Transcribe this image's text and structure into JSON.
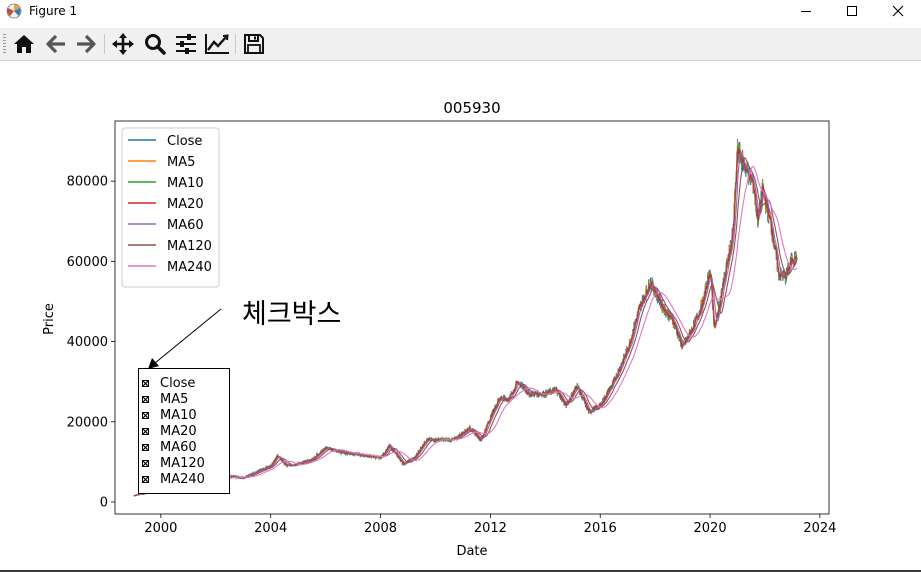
{
  "window": {
    "title": "Figure 1",
    "icon": "matplotlib-logo-icon",
    "controls": [
      "minimize-icon",
      "maximize-icon",
      "close-icon"
    ]
  },
  "toolbar": {
    "buttons": [
      {
        "name": "home-button",
        "icon": "home-icon"
      },
      {
        "name": "back-button",
        "icon": "arrow-left-icon"
      },
      {
        "name": "forward-button",
        "icon": "arrow-right-icon"
      },
      {
        "name": "pan-button",
        "icon": "move-icon"
      },
      {
        "name": "zoom-button",
        "icon": "magnifier-icon"
      },
      {
        "name": "configure-subplots-button",
        "icon": "sliders-icon"
      },
      {
        "name": "edit-axis-button",
        "icon": "line-chart-icon"
      },
      {
        "name": "save-button",
        "icon": "floppy-disk-icon"
      }
    ]
  },
  "annotation": {
    "text": "체크박스"
  },
  "checkboxes": [
    {
      "label": "Close",
      "checked": true
    },
    {
      "label": "MA5",
      "checked": true
    },
    {
      "label": "MA10",
      "checked": true
    },
    {
      "label": "MA20",
      "checked": true
    },
    {
      "label": "MA60",
      "checked": true
    },
    {
      "label": "MA120",
      "checked": true
    },
    {
      "label": "MA240",
      "checked": true
    }
  ],
  "chart_data": {
    "type": "line",
    "title": "005930",
    "xlabel": "Date",
    "ylabel": "Price",
    "xlim": [
      "1998-05-01",
      "2024-05-01"
    ],
    "ylim": [
      -3000,
      95000
    ],
    "xticks": [
      "2000",
      "2004",
      "2008",
      "2012",
      "2016",
      "2020",
      "2024"
    ],
    "yticks": [
      "0",
      "20000",
      "40000",
      "60000",
      "80000"
    ],
    "legend_position": "upper-left",
    "grid": false,
    "series": [
      {
        "name": "Close",
        "color": "#1f77b4"
      },
      {
        "name": "MA5",
        "color": "#ff7f0e"
      },
      {
        "name": "MA10",
        "color": "#2ca02c"
      },
      {
        "name": "MA20",
        "color": "#d62728"
      },
      {
        "name": "MA60",
        "color": "#9467bd"
      },
      {
        "name": "MA120",
        "color": "#8c564b"
      },
      {
        "name": "MA240",
        "color": "#e377c2"
      }
    ],
    "approx_close_points": [
      [
        "1999-01-01",
        1500
      ],
      [
        "1999-07-01",
        2500
      ],
      [
        "2000-01-01",
        3200
      ],
      [
        "2000-07-01",
        3000
      ],
      [
        "2001-01-01",
        3200
      ],
      [
        "2001-07-01",
        4000
      ],
      [
        "2002-01-01",
        5500
      ],
      [
        "2002-07-01",
        6500
      ],
      [
        "2003-01-01",
        6000
      ],
      [
        "2003-07-01",
        7500
      ],
      [
        "2004-01-01",
        9000
      ],
      [
        "2004-04-01",
        11500
      ],
      [
        "2004-08-01",
        9000
      ],
      [
        "2005-01-01",
        9500
      ],
      [
        "2005-07-01",
        10500
      ],
      [
        "2006-01-01",
        13500
      ],
      [
        "2006-07-01",
        12500
      ],
      [
        "2007-01-01",
        12000
      ],
      [
        "2007-07-01",
        11500
      ],
      [
        "2008-01-01",
        11000
      ],
      [
        "2008-05-01",
        14000
      ],
      [
        "2008-11-01",
        9500
      ],
      [
        "2009-04-01",
        11000
      ],
      [
        "2009-09-01",
        15500
      ],
      [
        "2010-03-01",
        15500
      ],
      [
        "2010-09-01",
        15500
      ],
      [
        "2011-04-01",
        18500
      ],
      [
        "2011-09-01",
        15500
      ],
      [
        "2012-01-01",
        21000
      ],
      [
        "2012-05-01",
        26000
      ],
      [
        "2012-09-01",
        25500
      ],
      [
        "2013-01-01",
        30000
      ],
      [
        "2013-06-01",
        27000
      ],
      [
        "2014-01-01",
        27000
      ],
      [
        "2014-06-01",
        28000
      ],
      [
        "2014-10-01",
        24000
      ],
      [
        "2015-03-01",
        29000
      ],
      [
        "2015-08-01",
        22500
      ],
      [
        "2016-01-01",
        24000
      ],
      [
        "2016-07-01",
        30000
      ],
      [
        "2017-01-01",
        38000
      ],
      [
        "2017-06-01",
        48000
      ],
      [
        "2017-11-01",
        55000
      ],
      [
        "2018-04-01",
        49000
      ],
      [
        "2018-09-01",
        45000
      ],
      [
        "2019-01-01",
        38500
      ],
      [
        "2019-06-01",
        44000
      ],
      [
        "2019-10-01",
        50000
      ],
      [
        "2020-01-01",
        58000
      ],
      [
        "2020-03-01",
        43000
      ],
      [
        "2020-07-01",
        55000
      ],
      [
        "2020-11-01",
        67000
      ],
      [
        "2021-01-01",
        88000
      ],
      [
        "2021-04-01",
        84000
      ],
      [
        "2021-08-01",
        79000
      ],
      [
        "2021-10-01",
        70000
      ],
      [
        "2021-12-01",
        78000
      ],
      [
        "2022-04-01",
        68000
      ],
      [
        "2022-07-01",
        57000
      ],
      [
        "2022-10-01",
        56000
      ],
      [
        "2023-01-01",
        61000
      ],
      [
        "2023-03-01",
        60500
      ]
    ]
  }
}
